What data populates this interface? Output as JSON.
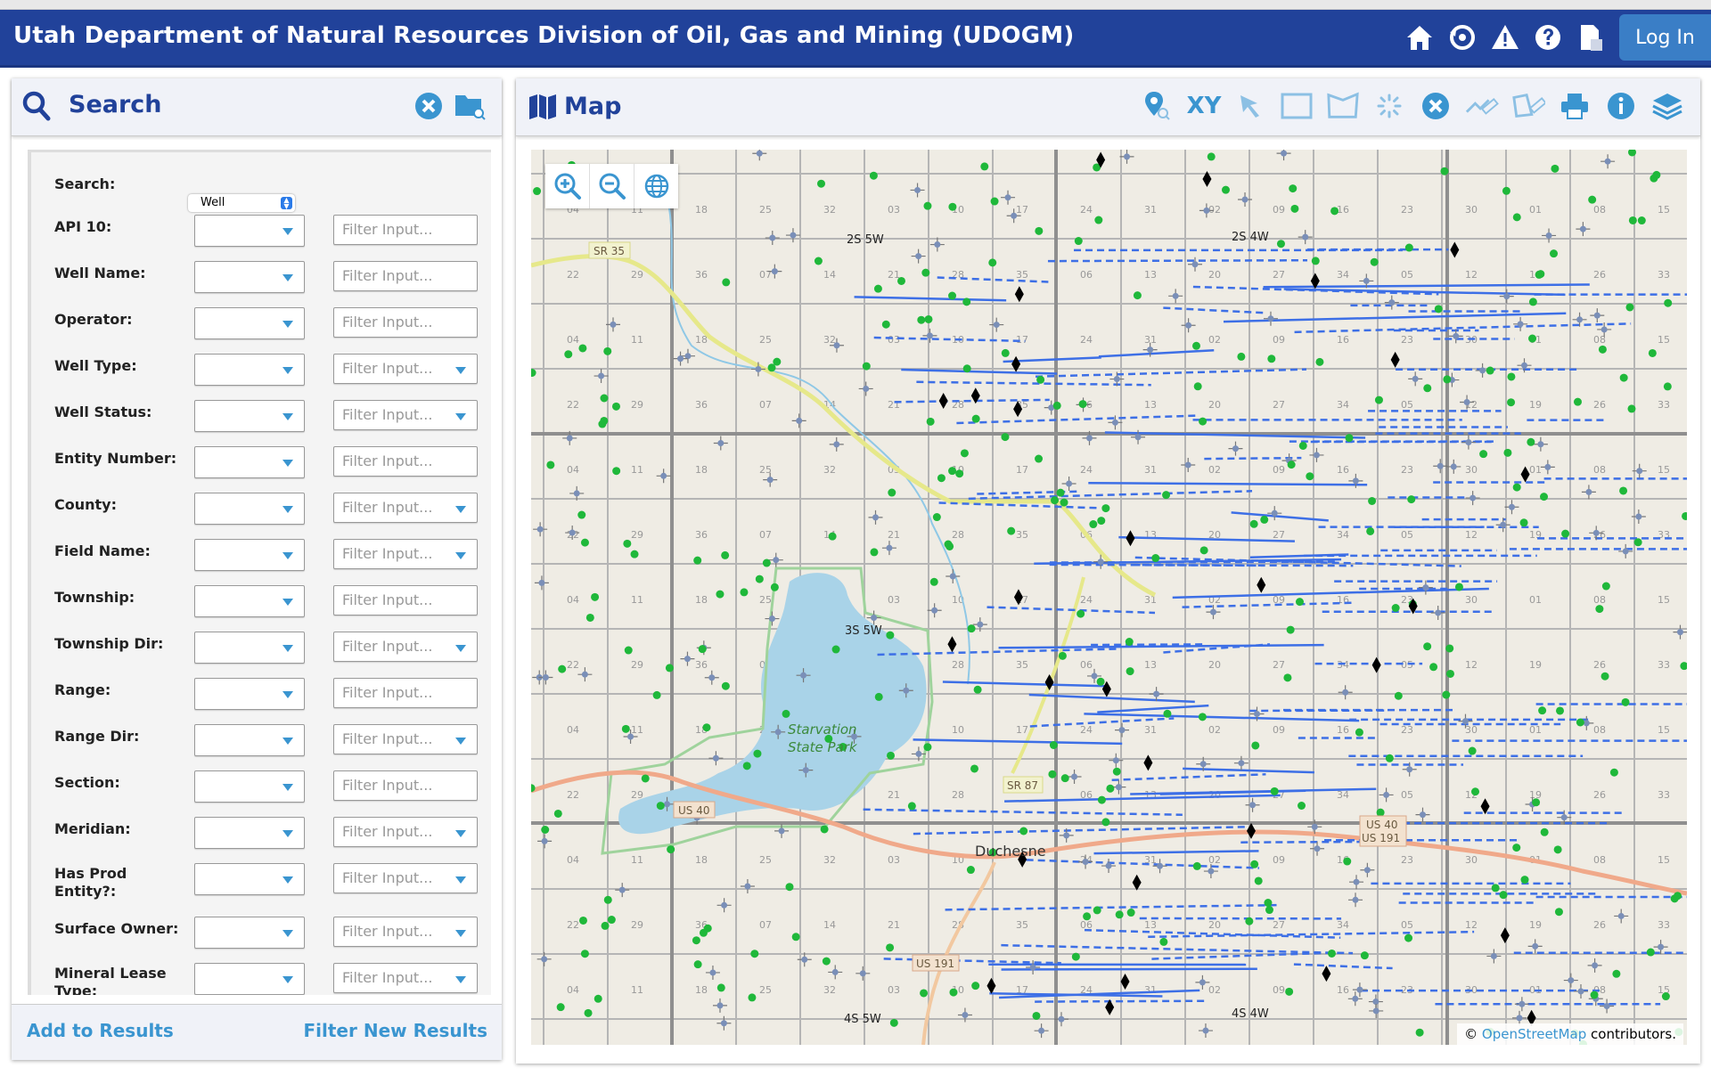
{
  "header": {
    "title": "Utah Department of Natural Resources Division of Oil, Gas and Mining (UDOGM)",
    "icons": [
      "home-icon",
      "restore-icon",
      "warning-icon",
      "help-icon",
      "document-icon"
    ],
    "login_label": "Log In",
    "color": "#21429a"
  },
  "search_panel": {
    "title": "Search",
    "search_label": "Search:",
    "search_type": "Well",
    "placeholder": "Filter Input...",
    "fields": [
      {
        "label": "API 10:",
        "filter_dropdown": false
      },
      {
        "label": "Well Name:",
        "filter_dropdown": false
      },
      {
        "label": "Operator:",
        "filter_dropdown": false
      },
      {
        "label": "Well Type:",
        "filter_dropdown": true
      },
      {
        "label": "Well Status:",
        "filter_dropdown": true
      },
      {
        "label": "Entity Number:",
        "filter_dropdown": false
      },
      {
        "label": "County:",
        "filter_dropdown": true
      },
      {
        "label": "Field Name:",
        "filter_dropdown": true
      },
      {
        "label": "Township:",
        "filter_dropdown": false
      },
      {
        "label": "Township Dir:",
        "filter_dropdown": true
      },
      {
        "label": "Range:",
        "filter_dropdown": false
      },
      {
        "label": "Range Dir:",
        "filter_dropdown": true
      },
      {
        "label": "Section:",
        "filter_dropdown": false
      },
      {
        "label": "Meridian:",
        "filter_dropdown": true
      },
      {
        "label": "Has Prod Entity?:",
        "filter_dropdown": true
      },
      {
        "label": "Surface Owner:",
        "filter_dropdown": true
      },
      {
        "label": "Mineral Lease Type:",
        "filter_dropdown": true
      }
    ],
    "add_label": "Add to Results",
    "filter_label": "Filter New Results",
    "accent": "#3a95d0"
  },
  "map_panel": {
    "title": "Map",
    "tools": [
      "locate-icon",
      "xy-tool",
      "select-arrow-icon",
      "rectangle-select-icon",
      "polygon-select-icon",
      "spinner-icon",
      "clear-icon",
      "measure-line-icon",
      "measure-area-icon",
      "print-icon",
      "info-icon",
      "layers-icon"
    ],
    "xy_label": "XY",
    "labels": {
      "t2s5w": "2S 5W",
      "t2s4w": "2S 4W",
      "t3s5w": "3S 5W",
      "t4s5w": "4S 5W",
      "t4s4w": "4S 4W",
      "park1": "Starvation",
      "park2": "State Park",
      "town": "Duchesne",
      "us40": "US 40",
      "us40b": "US 40",
      "us191b": "US 191",
      "us191": "US 191",
      "sr35": "SR 35",
      "sr87": "SR 87"
    },
    "attribution_prefix": "©",
    "attribution_link": "OpenStreetMap",
    "attribution_suffix": "contributors."
  }
}
